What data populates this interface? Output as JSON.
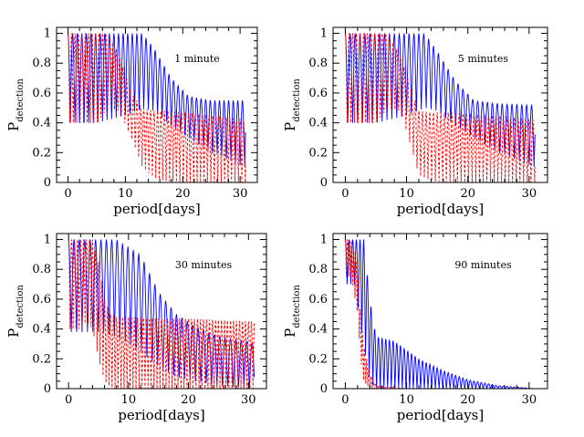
{
  "figure": {
    "ylabel_main": "P",
    "ylabel_sub": "detection",
    "xlabel": "period[days]"
  },
  "colors": {
    "solid_series": "#0000ff",
    "dashed_series": "#ff0000"
  },
  "chart_data": [
    {
      "type": "line",
      "annotation": "1 minute",
      "xlabel": "period[days]",
      "ylabel": "P detection",
      "xlim": [
        -2,
        33
      ],
      "ylim": [
        0,
        1.04
      ],
      "x_ticks": [
        0,
        10,
        20,
        30
      ],
      "y_ticks": [
        0,
        0.2,
        0.4,
        0.6,
        0.8,
        1
      ],
      "series": [
        {
          "style": "solid",
          "color": "#0000ff",
          "envelope": {
            "x": [
              0,
              5,
              10,
              13,
              15,
              18,
              21,
              25,
              31
            ],
            "upper": [
              1,
              1,
              1,
              1,
              0.9,
              0.7,
              0.58,
              0.55,
              0.55
            ],
            "lower": [
              0.4,
              0.4,
              0.45,
              0.5,
              0.48,
              0.38,
              0.3,
              0.2,
              0.1
            ]
          },
          "oscillation_period_days": 0.8
        },
        {
          "style": "dashed",
          "color": "#ff0000",
          "envelope": {
            "x": [
              0,
              5,
              7,
              9,
              11,
              13,
              15,
              17,
              20,
              25,
              31
            ],
            "upper": [
              1,
              1,
              1,
              0.85,
              0.6,
              0.5,
              0.48,
              0.48,
              0.47,
              0.45,
              0.42
            ],
            "lower": [
              0.4,
              0.4,
              0.5,
              0.48,
              0.3,
              0.1,
              0.03,
              0.01,
              0,
              0,
              0
            ]
          },
          "oscillation_period_days": 0.6
        }
      ]
    },
    {
      "type": "line",
      "annotation": "5 minutes",
      "xlabel": "period[days]",
      "ylabel": "P detection",
      "xlim": [
        -2,
        33
      ],
      "ylim": [
        0,
        1.04
      ],
      "x_ticks": [
        0,
        10,
        20,
        30
      ],
      "y_ticks": [
        0,
        0.2,
        0.4,
        0.6,
        0.8,
        1
      ],
      "series": [
        {
          "style": "solid",
          "color": "#0000ff",
          "envelope": {
            "x": [
              0,
              5,
              10,
              13,
              15,
              18,
              21,
              25,
              31
            ],
            "upper": [
              1,
              1,
              1,
              1,
              0.88,
              0.68,
              0.55,
              0.53,
              0.52
            ],
            "lower": [
              0.4,
              0.4,
              0.45,
              0.5,
              0.48,
              0.38,
              0.3,
              0.2,
              0.1
            ]
          },
          "oscillation_period_days": 0.8
        },
        {
          "style": "dashed",
          "color": "#ff0000",
          "envelope": {
            "x": [
              0,
              5,
              7,
              9,
              11,
              12,
              14,
              17,
              20,
              25,
              31
            ],
            "upper": [
              1,
              1,
              1,
              0.85,
              0.6,
              0.48,
              0.47,
              0.47,
              0.46,
              0.45,
              0.42
            ],
            "lower": [
              0.4,
              0.4,
              0.5,
              0.48,
              0.2,
              0.05,
              0.01,
              0,
              0,
              0,
              0
            ]
          },
          "oscillation_period_days": 0.6
        }
      ]
    },
    {
      "type": "line",
      "annotation": "30 minutes",
      "xlabel": "period[days]",
      "ylabel": "P detection",
      "xlim": [
        -2,
        33
      ],
      "ylim": [
        0,
        1.04
      ],
      "x_ticks": [
        0,
        10,
        20,
        30
      ],
      "y_ticks": [
        0,
        0.2,
        0.4,
        0.6,
        0.8,
        1
      ],
      "series": [
        {
          "style": "solid",
          "color": "#0000ff",
          "envelope": {
            "x": [
              0,
              5,
              8,
              12,
              15,
              18,
              21,
              25,
              31
            ],
            "upper": [
              1,
              1,
              1,
              0.9,
              0.65,
              0.5,
              0.42,
              0.35,
              0.31
            ],
            "lower": [
              0.38,
              0.38,
              0.35,
              0.25,
              0.15,
              0.08,
              0.05,
              0.02,
              0
            ]
          },
          "oscillation_period_days": 0.9
        },
        {
          "style": "dashed",
          "color": "#ff0000",
          "envelope": {
            "x": [
              0,
              2,
              3,
              4,
              5,
              6,
              7,
              8,
              10,
              15,
              20,
              25,
              31
            ],
            "upper": [
              1,
              1,
              1,
              1,
              0.85,
              0.6,
              0.5,
              0.48,
              0.48,
              0.47,
              0.47,
              0.46,
              0.45
            ],
            "lower": [
              0.4,
              0.4,
              0.45,
              0.4,
              0.2,
              0.05,
              0.01,
              0,
              0,
              0,
              0,
              0,
              0
            ]
          },
          "oscillation_period_days": 0.5
        }
      ]
    },
    {
      "type": "line",
      "annotation": "90 minutes",
      "xlabel": "period[days]",
      "ylabel": "P detection",
      "xlim": [
        -2,
        33
      ],
      "ylim": [
        0,
        1.04
      ],
      "x_ticks": [
        0,
        10,
        20,
        30
      ],
      "y_ticks": [
        0,
        0.2,
        0.4,
        0.6,
        0.8,
        1
      ],
      "series": [
        {
          "style": "solid",
          "color": "#0000ff",
          "envelope": {
            "x": [
              0,
              1.5,
              3,
              4,
              5,
              8,
              12,
              16,
              20,
              25,
              31
            ],
            "upper": [
              1,
              1,
              1,
              0.6,
              0.35,
              0.32,
              0.2,
              0.12,
              0.06,
              0.02,
              0
            ],
            "lower": [
              0.7,
              0.7,
              0.3,
              0.05,
              0,
              0,
              0,
              0,
              0,
              0,
              0
            ]
          },
          "oscillation_period_days": 0.6
        },
        {
          "style": "dashed",
          "color": "#ff0000",
          "envelope": {
            "x": [
              0,
              1,
              2,
              2.5,
              3,
              4,
              5,
              10,
              31
            ],
            "upper": [
              1,
              1,
              0.8,
              0.5,
              0.3,
              0.1,
              0.02,
              0,
              0
            ],
            "lower": [
              0.75,
              0.75,
              0.5,
              0.2,
              0.05,
              0,
              0,
              0,
              0
            ]
          },
          "oscillation_period_days": 0.35
        }
      ]
    }
  ]
}
